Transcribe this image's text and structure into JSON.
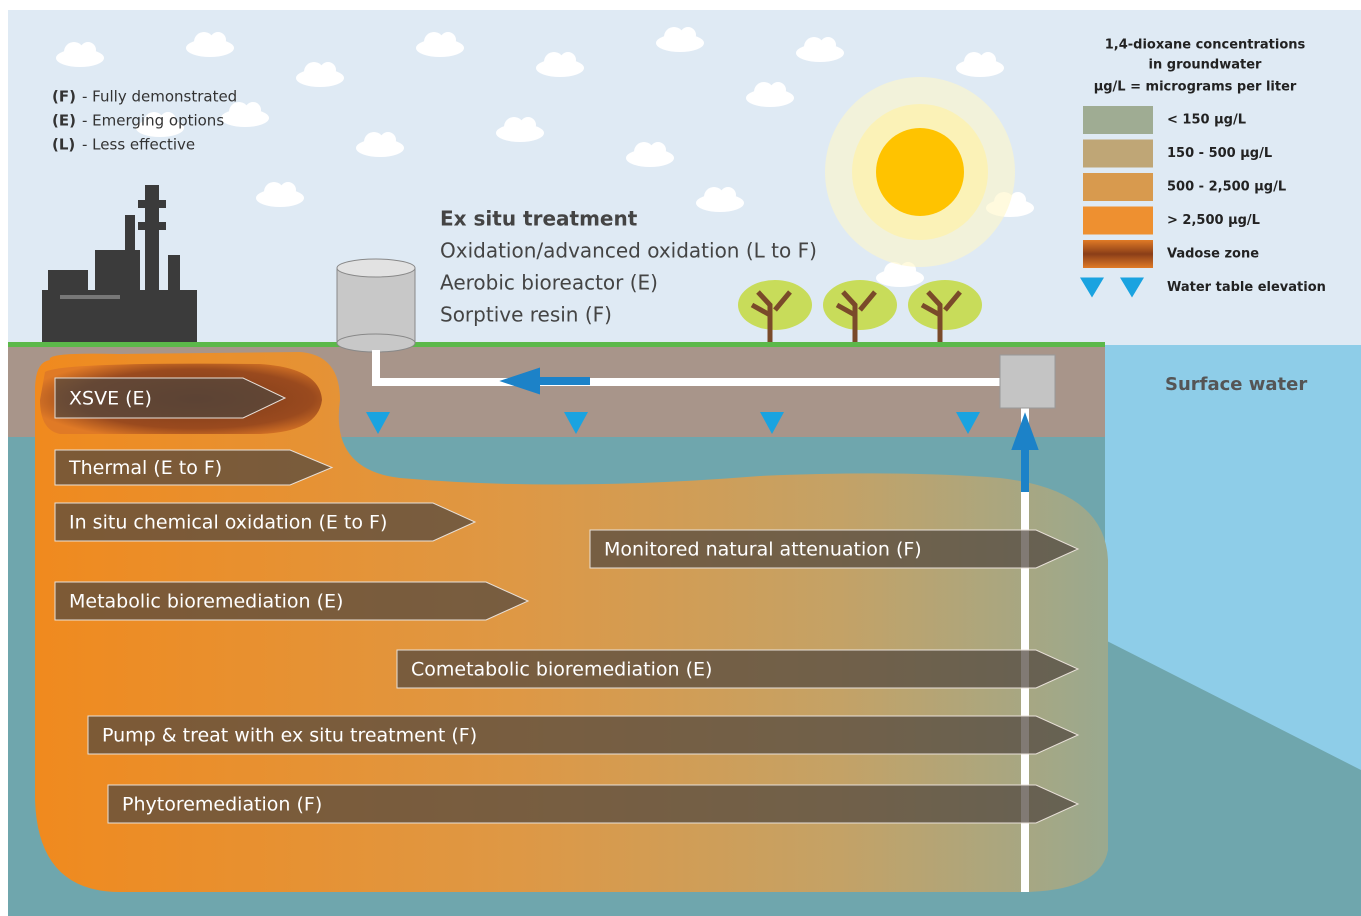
{
  "key": {
    "items": [
      {
        "code": "(F)",
        "text": "- Fully demonstrated"
      },
      {
        "code": "(E)",
        "text": "- Emerging options"
      },
      {
        "code": "(L)",
        "text": "- Less effective"
      }
    ]
  },
  "ex_situ": {
    "title": "Ex situ treatment",
    "items": [
      "Oxidation/advanced oxidation (L to F)",
      "Aerobic bioreactor (E)",
      "Sorptive resin (F)"
    ]
  },
  "concentration_legend": {
    "title": [
      "1,4-dioxane concentrations",
      "in groundwater"
    ],
    "subtitle": "µg/L = micrograms per liter",
    "items": [
      "< 150 µg/L",
      "150 - 500 µg/L",
      "500  - 2,500 µg/L",
      "> 2,500 µg/L",
      "Vadose zone",
      "Water table elevation"
    ]
  },
  "surface_water": "Surface water",
  "technologies": [
    "XSVE (E)",
    "Thermal (E to F)",
    "In situ chemical oxidation (E to F)",
    "Monitored natural attenuation (F)",
    "Metabolic bioremediation (E)",
    "Cometabolic bioremediation (E)",
    "Pump & treat with ex situ treatment (F)",
    "Phytoremediation (F)"
  ]
}
